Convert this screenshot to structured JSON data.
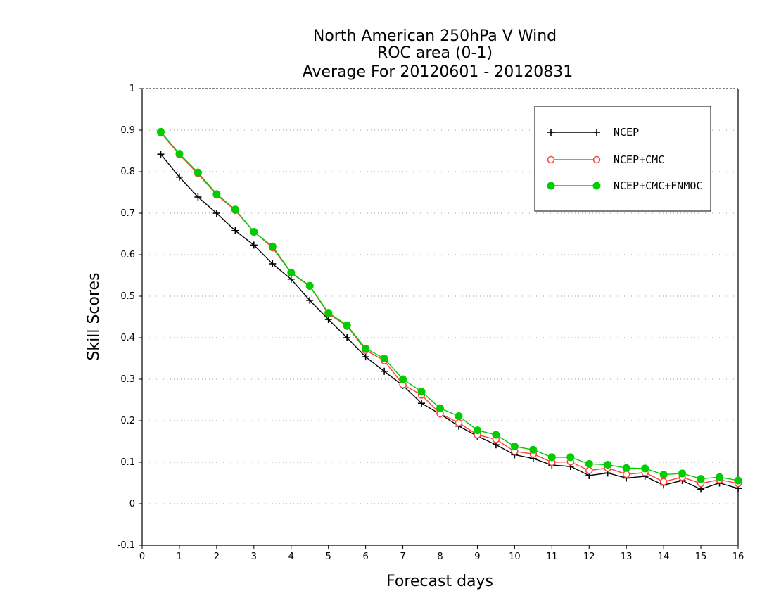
{
  "chart_data": {
    "type": "line",
    "title_lines": [
      "North American 250hPa V Wind",
      "ROC area (0-1)",
      "Average For 20120601 - 20120831"
    ],
    "xlabel": "Forecast days",
    "ylabel": "Skill Scores",
    "xlim": [
      0,
      16
    ],
    "ylim": [
      -0.1,
      1
    ],
    "xticks": [
      "0",
      "1",
      "2",
      "3",
      "4",
      "5",
      "6",
      "7",
      "8",
      "9",
      "10",
      "11",
      "12",
      "13",
      "14",
      "15",
      "16"
    ],
    "yticks": [
      "-0.1",
      "0",
      "0.1",
      "0.2",
      "0.3",
      "0.4",
      "0.5",
      "0.6",
      "0.7",
      "0.8",
      "0.9",
      "1"
    ],
    "grid": true,
    "legend_position": "top-right",
    "x": [
      0.5,
      1,
      1.5,
      2,
      2.5,
      3,
      3.5,
      4,
      4.5,
      5,
      5.5,
      6,
      6.5,
      7,
      7.5,
      8,
      8.5,
      9,
      9.5,
      10,
      10.5,
      11,
      11.5,
      12,
      12.5,
      13,
      13.5,
      14,
      14.5,
      15,
      15.5,
      16
    ],
    "series": [
      {
        "name": "NCEP",
        "color": "#000000",
        "marker": "plus",
        "values": [
          0.842,
          0.787,
          0.739,
          0.7,
          0.658,
          0.623,
          0.578,
          0.541,
          0.49,
          0.444,
          0.4,
          0.354,
          0.319,
          0.285,
          0.242,
          0.216,
          0.187,
          0.163,
          0.142,
          0.118,
          0.109,
          0.093,
          0.09,
          0.068,
          0.074,
          0.062,
          0.066,
          0.045,
          0.056,
          0.035,
          0.05,
          0.037
        ]
      },
      {
        "name": "NCEP+CMC",
        "color": "#ff4040",
        "marker": "open-circle",
        "values": [
          0.894,
          0.841,
          0.795,
          0.744,
          0.707,
          0.655,
          0.617,
          0.556,
          0.524,
          0.458,
          0.428,
          0.37,
          0.345,
          0.287,
          0.262,
          0.217,
          0.195,
          0.166,
          0.155,
          0.126,
          0.12,
          0.1,
          0.101,
          0.08,
          0.086,
          0.071,
          0.075,
          0.053,
          0.064,
          0.049,
          0.058,
          0.049
        ]
      },
      {
        "name": "NCEP+CMC+FNMOC",
        "color": "#00cc00",
        "marker": "filled-circle",
        "values": [
          0.896,
          0.843,
          0.798,
          0.746,
          0.709,
          0.655,
          0.62,
          0.557,
          0.525,
          0.46,
          0.43,
          0.374,
          0.35,
          0.3,
          0.27,
          0.23,
          0.211,
          0.177,
          0.166,
          0.138,
          0.13,
          0.112,
          0.112,
          0.096,
          0.094,
          0.086,
          0.085,
          0.07,
          0.073,
          0.06,
          0.064,
          0.056
        ]
      }
    ]
  }
}
